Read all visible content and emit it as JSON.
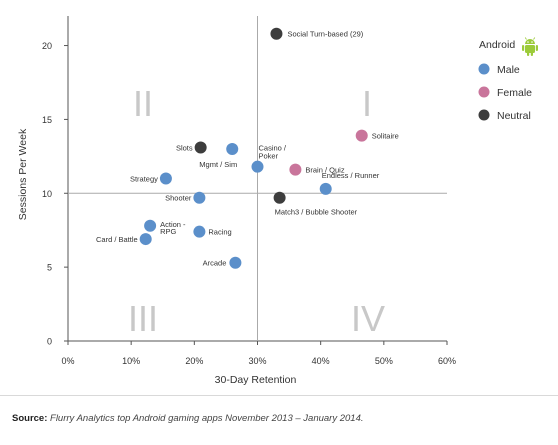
{
  "chart_data": {
    "type": "scatter",
    "xlabel": "30-Day Retention",
    "ylabel": "Sessions Per Week",
    "xlim": [
      0,
      60
    ],
    "ylim": [
      0,
      22
    ],
    "xticks": [
      "0%",
      "10%",
      "20%",
      "30%",
      "40%",
      "50%",
      "60%"
    ],
    "yticks": [
      "0",
      "5",
      "10",
      "15",
      "20"
    ],
    "reference_lines": {
      "x": 30,
      "y": 10
    },
    "quadrants": [
      "I",
      "II",
      "III",
      "IV"
    ],
    "legend": {
      "title": "Android",
      "position": "right",
      "entries": [
        {
          "key": "male",
          "label": "Male",
          "color": "#5b8fca"
        },
        {
          "key": "female",
          "label": "Female",
          "color": "#c9759b"
        },
        {
          "key": "neutral",
          "label": "Neutral",
          "color": "#3d3d3d"
        }
      ]
    },
    "points": [
      {
        "label": "Social Turn-based (29)",
        "x": 33,
        "y": 20.8,
        "group": "neutral"
      },
      {
        "label": "Solitaire",
        "x": 46.5,
        "y": 13.9,
        "group": "female"
      },
      {
        "label": "Slots",
        "x": 21,
        "y": 13.1,
        "group": "neutral"
      },
      {
        "label": "Mgmt / Sim",
        "x": 26,
        "y": 13.0,
        "group": "male"
      },
      {
        "label": "Casino / Poker",
        "x": 30,
        "y": 11.8,
        "group": "male"
      },
      {
        "label": "Brain / Quiz",
        "x": 36,
        "y": 11.6,
        "group": "female"
      },
      {
        "label": "Strategy",
        "x": 15.5,
        "y": 11.0,
        "group": "male"
      },
      {
        "label": "Endless / Runner",
        "x": 40.8,
        "y": 10.3,
        "group": "male"
      },
      {
        "label": "Shooter",
        "x": 20.8,
        "y": 9.7,
        "group": "male"
      },
      {
        "label": "Match3 / Bubble Shooter",
        "x": 33.5,
        "y": 9.7,
        "group": "neutral"
      },
      {
        "label": "Action - RPG",
        "x": 13,
        "y": 7.8,
        "group": "male"
      },
      {
        "label": "Racing",
        "x": 20.8,
        "y": 7.4,
        "group": "male"
      },
      {
        "label": "Card / Battle",
        "x": 12.3,
        "y": 6.9,
        "group": "male"
      },
      {
        "label": "Arcade",
        "x": 26.5,
        "y": 5.3,
        "group": "male"
      }
    ]
  },
  "source": {
    "prefix": "Source:",
    "text": " Flurry Analytics top Android gaming apps November 2013 – January 2014."
  }
}
